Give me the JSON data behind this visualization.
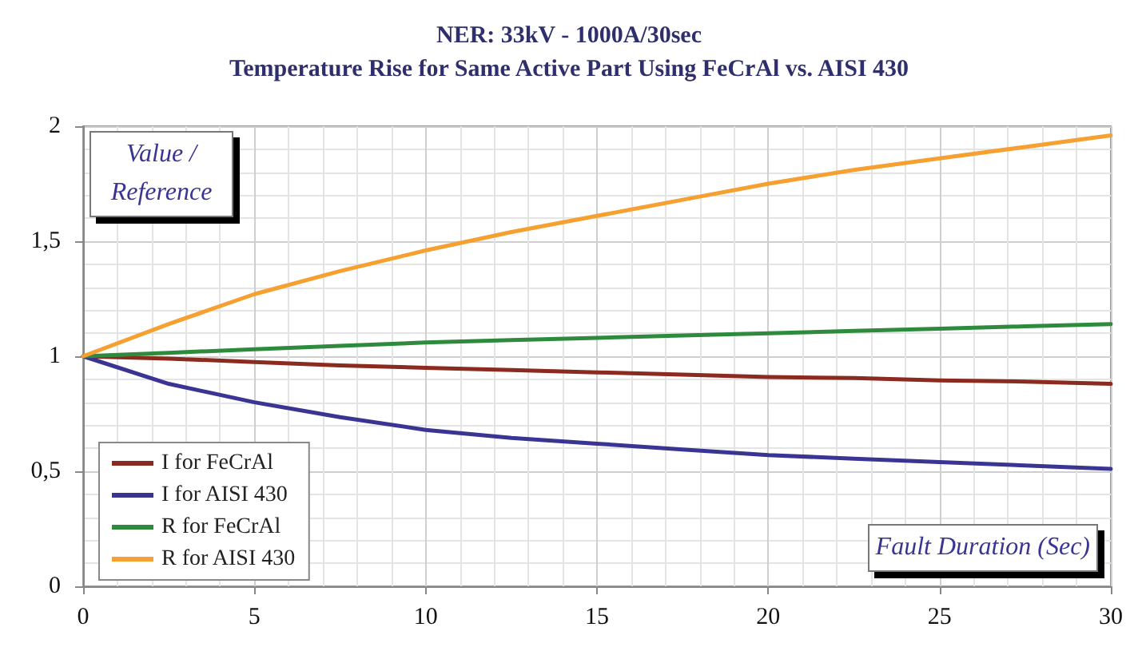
{
  "chart_data": {
    "type": "line",
    "title": "NER: 33kV - 1000A/30sec",
    "subtitle": "Temperature Rise for Same Active Part Using FeCrAl vs. AISI 430",
    "xlabel": "Fault Duration (Sec)",
    "ylabel": "Value / Reference",
    "x": [
      0,
      2.5,
      5,
      7.5,
      10,
      12.5,
      15,
      17.5,
      20,
      22.5,
      25,
      27.5,
      30
    ],
    "series": [
      {
        "name": "I for FeCrAl",
        "color": "#8b2a1e",
        "values": [
          1,
          0.99,
          0.975,
          0.96,
          0.95,
          0.94,
          0.93,
          0.92,
          0.91,
          0.905,
          0.895,
          0.89,
          0.88
        ]
      },
      {
        "name": "I for AISI 430",
        "color": "#3a3592",
        "values": [
          1,
          0.88,
          0.8,
          0.735,
          0.68,
          0.645,
          0.62,
          0.595,
          0.57,
          0.555,
          0.54,
          0.525,
          0.51
        ]
      },
      {
        "name": "R for FeCrAl",
        "color": "#2e8b3e",
        "values": [
          1,
          1.015,
          1.03,
          1.045,
          1.06,
          1.07,
          1.08,
          1.09,
          1.1,
          1.11,
          1.12,
          1.13,
          1.14
        ]
      },
      {
        "name": "R for AISI 430",
        "color": "#f5a030",
        "values": [
          1,
          1.14,
          1.27,
          1.37,
          1.46,
          1.54,
          1.61,
          1.68,
          1.75,
          1.81,
          1.86,
          1.91,
          1.96
        ]
      }
    ],
    "xlim": [
      0,
      30
    ],
    "xticks": [
      0,
      5,
      10,
      15,
      20,
      25,
      30
    ],
    "ylim": [
      0,
      2
    ],
    "yticks": [
      0,
      {
        "value": 0.5,
        "label": "0,5"
      },
      1,
      {
        "value": 1.5,
        "label": "1,5"
      },
      2
    ],
    "grid": true,
    "legend": "bottom left",
    "marker": "none",
    "line_style": "solid"
  }
}
